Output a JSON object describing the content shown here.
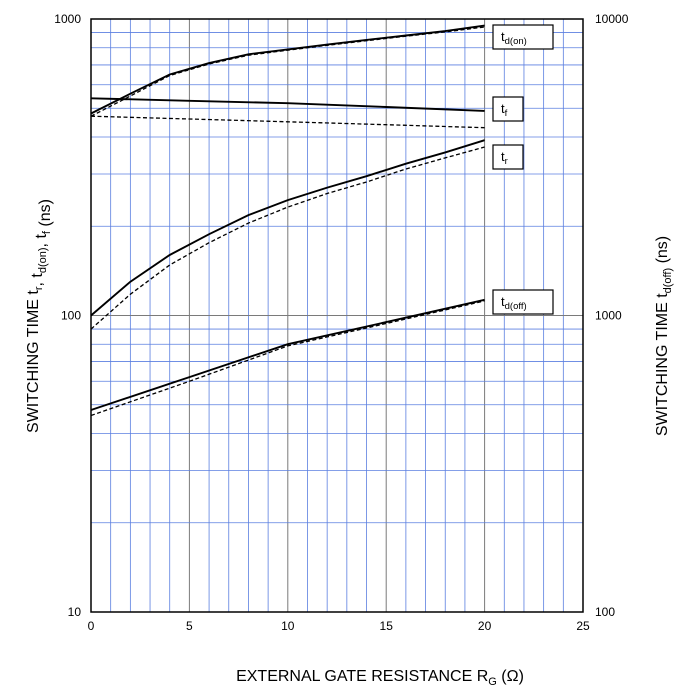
{
  "chart_data": {
    "type": "line",
    "xlabel": {
      "main": "EXTERNAL GATE RESISTANCE",
      "symbol": "R",
      "symbol_sub": "G",
      "unit": "(Ω)"
    },
    "ylabel_left": {
      "main": "SWITCHING TIME",
      "symbols": [
        {
          "base": "t",
          "sub": "r"
        },
        {
          "sep": ", "
        },
        {
          "base": "t",
          "sub": "d(on)"
        },
        {
          "sep": ", "
        },
        {
          "base": "t",
          "sub": "f"
        }
      ],
      "unit": "(ns)"
    },
    "ylabel_right": {
      "main": "SWITCHING TIME",
      "symbol": "t",
      "symbol_sub": "d(off)",
      "unit": "(ns)"
    },
    "xlim": [
      0,
      25
    ],
    "x_ticks": [
      "0",
      "5",
      "10",
      "15",
      "20",
      "25"
    ],
    "y_left_scale": "log",
    "y_left_lim": [
      10,
      1000
    ],
    "y_left_ticks": [
      "10",
      "100",
      "1000"
    ],
    "y_right_scale": "log",
    "y_right_lim": [
      100,
      10000
    ],
    "y_right_ticks": [
      "100",
      "1000",
      "10000"
    ],
    "grid": true,
    "series": [
      {
        "label_base": "t",
        "label_sub": "d(on)",
        "axis": "left",
        "style": "solid",
        "points": [
          [
            0,
            480
          ],
          [
            2,
            560
          ],
          [
            4,
            650
          ],
          [
            6,
            710
          ],
          [
            8,
            760
          ],
          [
            10,
            790
          ],
          [
            12,
            820
          ],
          [
            14,
            850
          ],
          [
            16,
            880
          ],
          [
            18,
            910
          ],
          [
            20,
            950
          ]
        ]
      },
      {
        "label_base": "t",
        "label_sub": "d(on)",
        "axis": "left",
        "style": "dashed",
        "points": [
          [
            0,
            470
          ],
          [
            2,
            550
          ],
          [
            4,
            645
          ],
          [
            6,
            705
          ],
          [
            8,
            755
          ],
          [
            10,
            785
          ],
          [
            12,
            815
          ],
          [
            14,
            845
          ],
          [
            16,
            875
          ],
          [
            18,
            905
          ],
          [
            20,
            940
          ]
        ]
      },
      {
        "label_base": "t",
        "label_sub": "f",
        "axis": "left",
        "style": "solid",
        "points": [
          [
            0,
            540
          ],
          [
            5,
            530
          ],
          [
            10,
            520
          ],
          [
            15,
            505
          ],
          [
            20,
            490
          ]
        ]
      },
      {
        "label_base": "t",
        "label_sub": "f",
        "axis": "left",
        "style": "dashed",
        "points": [
          [
            0,
            470
          ],
          [
            5,
            460
          ],
          [
            10,
            450
          ],
          [
            15,
            440
          ],
          [
            20,
            430
          ]
        ]
      },
      {
        "label_base": "t",
        "label_sub": "r",
        "axis": "left",
        "style": "solid",
        "points": [
          [
            0,
            100
          ],
          [
            2,
            130
          ],
          [
            4,
            160
          ],
          [
            6,
            188
          ],
          [
            8,
            218
          ],
          [
            10,
            245
          ],
          [
            12,
            270
          ],
          [
            14,
            295
          ],
          [
            16,
            325
          ],
          [
            18,
            355
          ],
          [
            20,
            390
          ]
        ]
      },
      {
        "label_base": "t",
        "label_sub": "r",
        "axis": "left",
        "style": "dashed",
        "points": [
          [
            0,
            90
          ],
          [
            2,
            118
          ],
          [
            4,
            148
          ],
          [
            6,
            176
          ],
          [
            8,
            205
          ],
          [
            10,
            232
          ],
          [
            12,
            258
          ],
          [
            14,
            282
          ],
          [
            16,
            312
          ],
          [
            18,
            340
          ],
          [
            20,
            370
          ]
        ]
      },
      {
        "label_base": "t",
        "label_sub": "d(off)",
        "axis": "right",
        "style": "solid",
        "points": [
          [
            0,
            480
          ],
          [
            5,
            620
          ],
          [
            10,
            800
          ],
          [
            15,
            950
          ],
          [
            20,
            1130
          ]
        ]
      },
      {
        "label_base": "t",
        "label_sub": "d(off)",
        "axis": "right",
        "style": "dashed",
        "points": [
          [
            0,
            460
          ],
          [
            5,
            600
          ],
          [
            10,
            790
          ],
          [
            15,
            940
          ],
          [
            20,
            1120
          ]
        ]
      }
    ],
    "labels": [
      {
        "base": "t",
        "sub": "d(on)"
      },
      {
        "base": "t",
        "sub": "f"
      },
      {
        "base": "t",
        "sub": "r"
      },
      {
        "base": "t",
        "sub": "d(off)"
      }
    ]
  }
}
